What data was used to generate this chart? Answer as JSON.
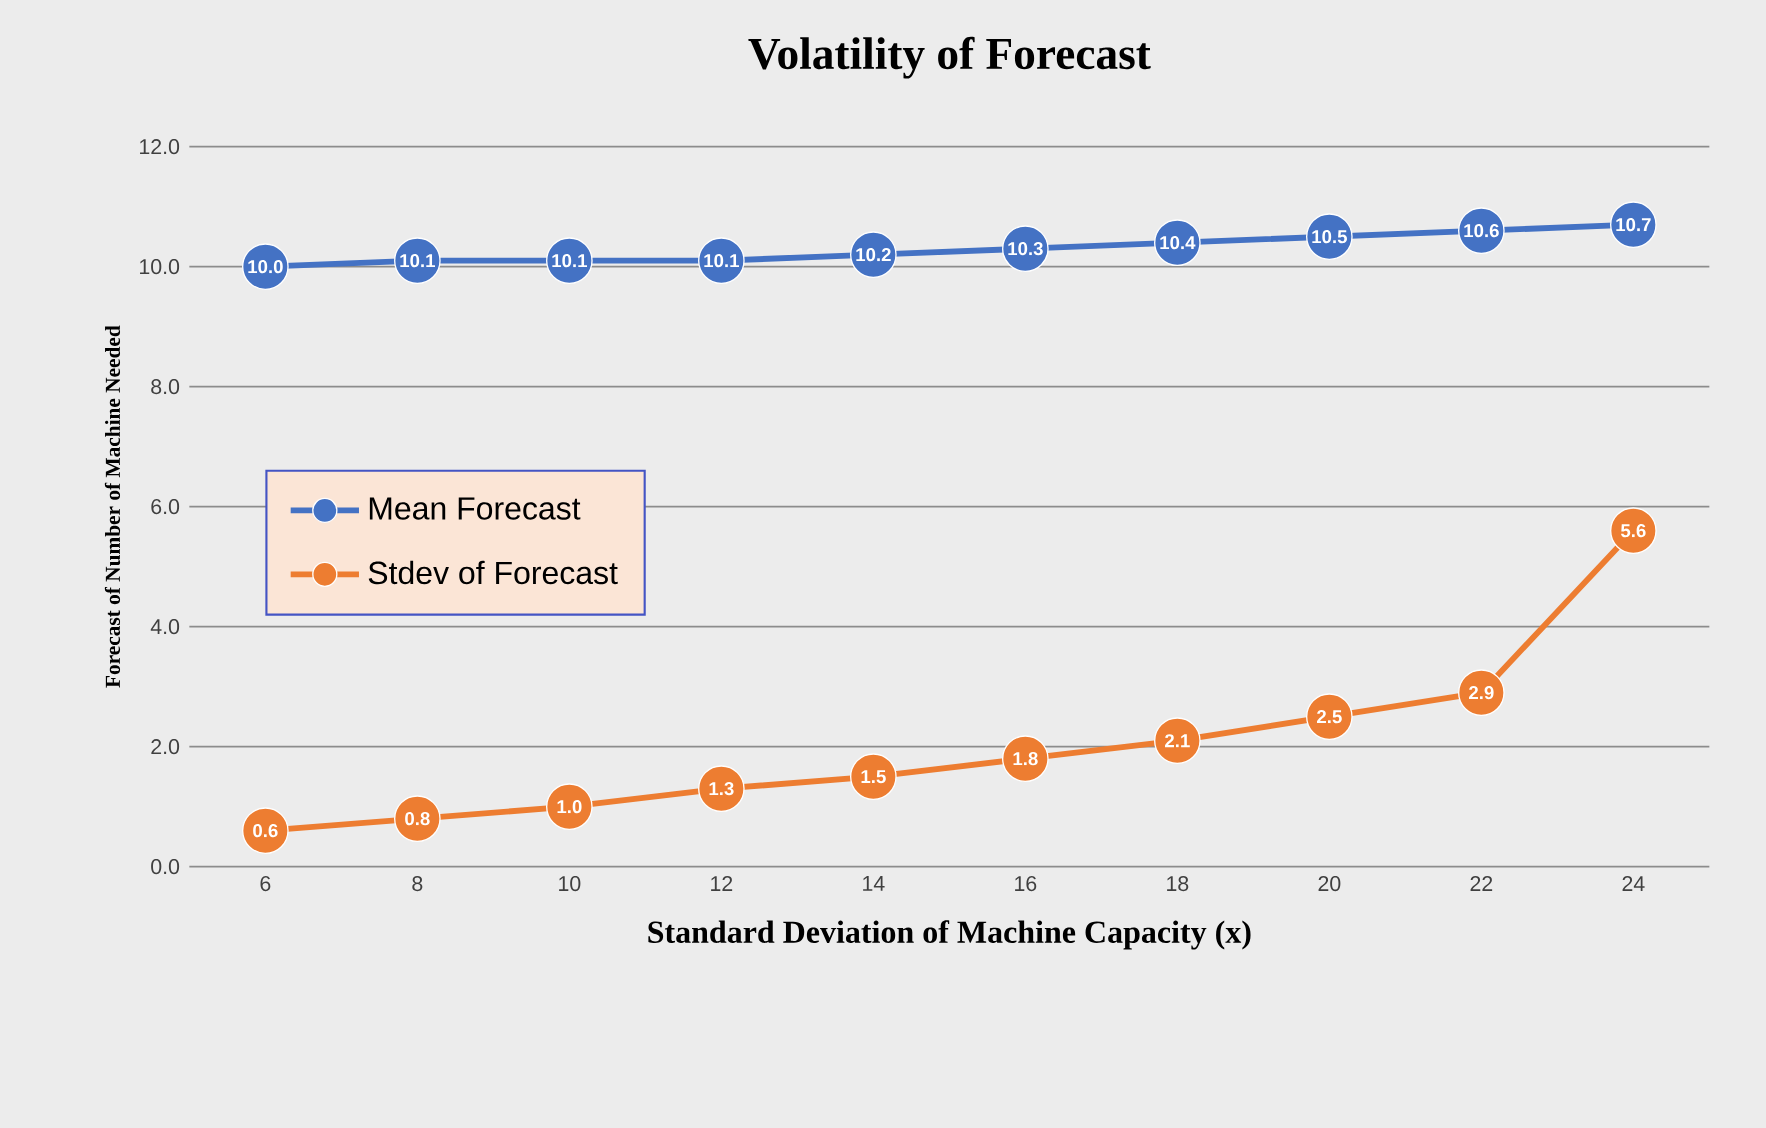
{
  "chart_data": {
    "type": "line",
    "title": "Volatility of Forecast",
    "xlabel": "Standard Deviation of Machine Capacity (x)",
    "ylabel": "Forecast of Number of Machine Needed",
    "categories": [
      "6",
      "8",
      "10",
      "12",
      "14",
      "16",
      "18",
      "20",
      "22",
      "24"
    ],
    "series": [
      {
        "name": "Mean Forecast",
        "color": "#4472c4",
        "values": [
          10.0,
          10.1,
          10.1,
          10.1,
          10.2,
          10.3,
          10.4,
          10.5,
          10.6,
          10.7
        ],
        "value_labels": [
          "10.0",
          "10.1",
          "10.1",
          "10.1",
          "10.2",
          "10.3",
          "10.4",
          "10.5",
          "10.6",
          "10.7"
        ]
      },
      {
        "name": "Stdev of Forecast",
        "color": "#ed7d31",
        "values": [
          0.6,
          0.8,
          1.0,
          1.3,
          1.5,
          1.8,
          2.1,
          2.5,
          2.9,
          5.6
        ],
        "value_labels": [
          "0.6",
          "0.8",
          "1.0",
          "1.3",
          "1.5",
          "1.8",
          "2.1",
          "2.5",
          "2.9",
          "5.6"
        ]
      }
    ],
    "ylim": [
      0,
      12
    ],
    "yticks": [
      {
        "value": 0,
        "label": "0.0"
      },
      {
        "value": 2,
        "label": "2.0"
      },
      {
        "value": 4,
        "label": "4.0"
      },
      {
        "value": 6,
        "label": "6.0"
      },
      {
        "value": 8,
        "label": "8.0"
      },
      {
        "value": 10,
        "label": "10.0"
      },
      {
        "value": 12,
        "label": "12.0"
      }
    ],
    "grid": "y",
    "legend": "left",
    "marker": "circle",
    "line_style": "solid"
  }
}
